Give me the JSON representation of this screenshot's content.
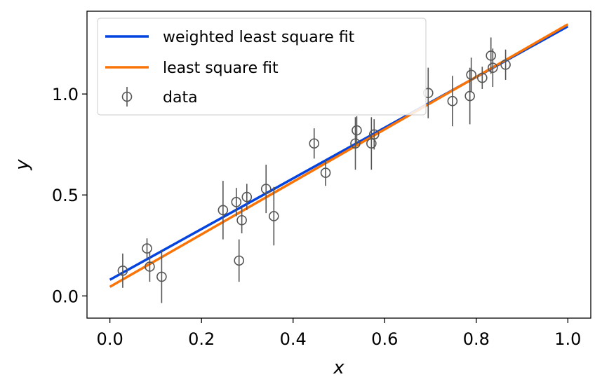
{
  "chart_data": {
    "type": "scatter",
    "xlabel": "x",
    "ylabel": "y",
    "xlim": [
      -0.05,
      1.05
    ],
    "ylim": [
      -0.11,
      1.41
    ],
    "xticks": [
      0.0,
      0.2,
      0.4,
      0.6,
      0.8,
      1.0
    ],
    "xtick_labels": [
      "0.0",
      "0.2",
      "0.4",
      "0.6",
      "0.8",
      "1.0"
    ],
    "yticks": [
      0.0,
      0.5,
      1.0
    ],
    "ytick_labels": [
      "0.0",
      "0.5",
      "1.0"
    ],
    "grid": false,
    "legend_position": "top-left",
    "lines": [
      {
        "name": "weighted least square fit",
        "color": "#0343df",
        "x": [
          0.0,
          1.0
        ],
        "y": [
          0.08,
          1.335
        ]
      },
      {
        "name": "least square fit",
        "color": "#f97306",
        "x": [
          0.0,
          1.0
        ],
        "y": [
          0.045,
          1.345
        ]
      }
    ],
    "scatter": {
      "name": "data",
      "color": "#555555",
      "points": [
        {
          "x": 0.028,
          "y": 0.125,
          "err": 0.085
        },
        {
          "x": 0.081,
          "y": 0.235,
          "err": 0.05
        },
        {
          "x": 0.087,
          "y": 0.145,
          "err": 0.075
        },
        {
          "x": 0.113,
          "y": 0.095,
          "err": 0.13
        },
        {
          "x": 0.247,
          "y": 0.425,
          "err": 0.145
        },
        {
          "x": 0.276,
          "y": 0.465,
          "err": 0.07
        },
        {
          "x": 0.282,
          "y": 0.175,
          "err": 0.105
        },
        {
          "x": 0.288,
          "y": 0.375,
          "err": 0.065
        },
        {
          "x": 0.299,
          "y": 0.49,
          "err": 0.065
        },
        {
          "x": 0.341,
          "y": 0.53,
          "err": 0.12
        },
        {
          "x": 0.358,
          "y": 0.395,
          "err": 0.145
        },
        {
          "x": 0.446,
          "y": 0.755,
          "err": 0.075
        },
        {
          "x": 0.471,
          "y": 0.61,
          "err": 0.065
        },
        {
          "x": 0.536,
          "y": 0.755,
          "err": 0.13
        },
        {
          "x": 0.539,
          "y": 0.82,
          "err": 0.07
        },
        {
          "x": 0.571,
          "y": 0.755,
          "err": 0.13
        },
        {
          "x": 0.577,
          "y": 0.8,
          "err": 0.075
        },
        {
          "x": 0.695,
          "y": 1.005,
          "err": 0.125
        },
        {
          "x": 0.748,
          "y": 0.965,
          "err": 0.125
        },
        {
          "x": 0.786,
          "y": 0.99,
          "err": 0.14
        },
        {
          "x": 0.789,
          "y": 1.095,
          "err": 0.085
        },
        {
          "x": 0.813,
          "y": 1.08,
          "err": 0.055
        },
        {
          "x": 0.832,
          "y": 1.19,
          "err": 0.09
        },
        {
          "x": 0.836,
          "y": 1.13,
          "err": 0.095
        },
        {
          "x": 0.864,
          "y": 1.145,
          "err": 0.075
        }
      ]
    }
  }
}
